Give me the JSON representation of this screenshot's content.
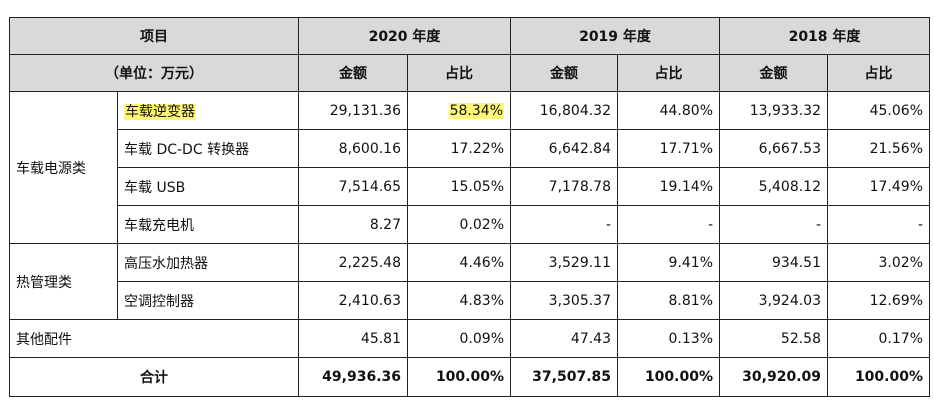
{
  "header": {
    "item_label": "项目",
    "unit_label": "（单位：万元）",
    "years": [
      "2020 年度",
      "2019 年度",
      "2018 年度"
    ],
    "amount_label": "金额",
    "ratio_label": "占比"
  },
  "highlight_color": "#fff676",
  "groups": [
    {
      "name": "车载电源类",
      "rows": [
        {
          "name": "车载逆变器",
          "values": [
            "29,131.36",
            "58.34%",
            "16,804.32",
            "44.80%",
            "13,933.32",
            "45.06%"
          ]
        },
        {
          "name": "车载 DC-DC 转换器",
          "values": [
            "8,600.16",
            "17.22%",
            "6,642.84",
            "17.71%",
            "6,667.53",
            "21.56%"
          ]
        },
        {
          "name": "车载 USB",
          "values": [
            "7,514.65",
            "15.05%",
            "7,178.78",
            "19.14%",
            "5,408.12",
            "17.49%"
          ]
        },
        {
          "name": "车载充电机",
          "values": [
            "8.27",
            "0.02%",
            "-",
            "-",
            "-",
            "-"
          ]
        }
      ]
    },
    {
      "name": "热管理类",
      "rows": [
        {
          "name": "高压水加热器",
          "values": [
            "2,225.48",
            "4.46%",
            "3,529.11",
            "9.41%",
            "934.51",
            "3.02%"
          ]
        },
        {
          "name": "空调控制器",
          "values": [
            "2,410.63",
            "4.83%",
            "3,305.37",
            "8.81%",
            "3,924.03",
            "12.69%"
          ]
        }
      ]
    }
  ],
  "other": {
    "name": "其他配件",
    "values": [
      "45.81",
      "0.09%",
      "47.43",
      "0.13%",
      "52.58",
      "0.17%"
    ]
  },
  "total": {
    "name": "合计",
    "values": [
      "49,936.36",
      "100.00%",
      "37,507.85",
      "100.00%",
      "30,920.09",
      "100.00%"
    ]
  }
}
